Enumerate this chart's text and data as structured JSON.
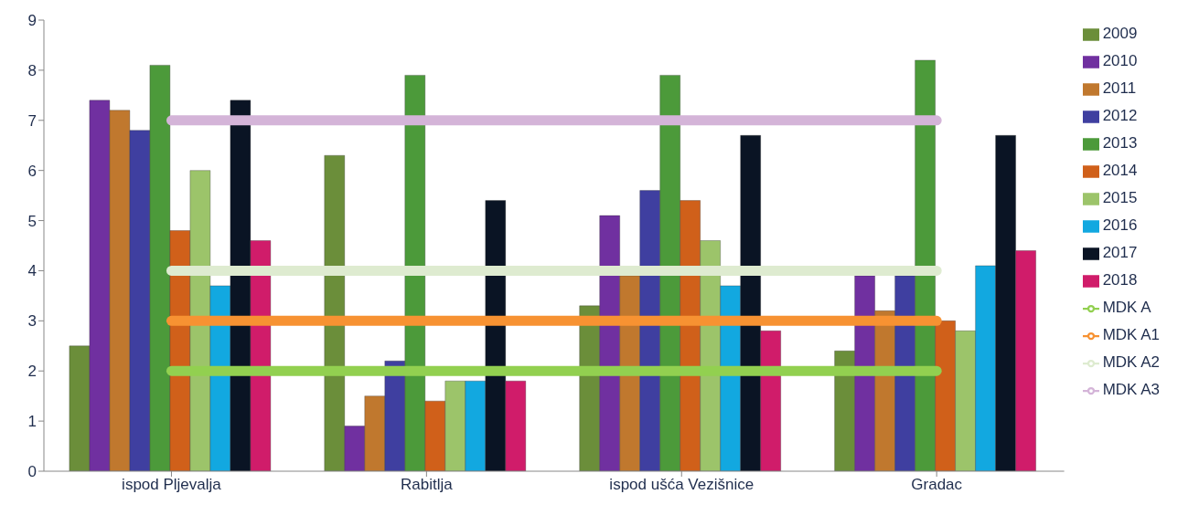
{
  "chart_data": {
    "type": "bar",
    "categories": [
      "ispod Pljevalja",
      "Rabitlja",
      "ispod ušća Vezišnice",
      "Gradac"
    ],
    "series": [
      {
        "name": "2009",
        "color": "#6b8e3a",
        "values": [
          2.5,
          6.3,
          3.3,
          2.4
        ]
      },
      {
        "name": "2010",
        "color": "#7030a0",
        "values": [
          7.4,
          0.9,
          5.1,
          3.9
        ]
      },
      {
        "name": "2011",
        "color": "#c0782e",
        "values": [
          7.2,
          1.5,
          3.9,
          3.2
        ]
      },
      {
        "name": "2012",
        "color": "#3f3fa0",
        "values": [
          6.8,
          2.2,
          5.6,
          3.9
        ]
      },
      {
        "name": "2013",
        "color": "#4c9a3a",
        "values": [
          8.1,
          7.9,
          7.9,
          8.2
        ]
      },
      {
        "name": "2014",
        "color": "#d0601a",
        "values": [
          4.8,
          1.4,
          5.4,
          3.0
        ]
      },
      {
        "name": "2015",
        "color": "#9cc46a",
        "values": [
          6.0,
          1.8,
          4.6,
          2.8
        ]
      },
      {
        "name": "2016",
        "color": "#12a8e0",
        "values": [
          3.7,
          1.8,
          3.7,
          4.1
        ]
      },
      {
        "name": "2017",
        "color": "#0a1424",
        "values": [
          7.4,
          5.4,
          6.7,
          6.7
        ]
      },
      {
        "name": "2018",
        "color": "#d01c6a",
        "values": [
          4.6,
          1.8,
          2.8,
          4.4
        ]
      },
      {
        "name": "MDK A",
        "type": "line",
        "color": "#92d050",
        "values": [
          2,
          2,
          2,
          2
        ]
      },
      {
        "name": "MDK A1",
        "type": "line",
        "color": "#f79232",
        "values": [
          3,
          3,
          3,
          3
        ]
      },
      {
        "name": "MDK A2",
        "type": "line",
        "color": "#deebd0",
        "values": [
          4,
          4,
          4,
          4
        ]
      },
      {
        "name": "MDK A3",
        "type": "line",
        "color": "#d4b4d8",
        "values": [
          7,
          7,
          7,
          7
        ]
      }
    ],
    "ylim": [
      0,
      9
    ],
    "yticks": [
      0,
      1,
      2,
      3,
      4,
      5,
      6,
      7,
      8,
      9
    ],
    "grid": false,
    "legend": "right"
  }
}
